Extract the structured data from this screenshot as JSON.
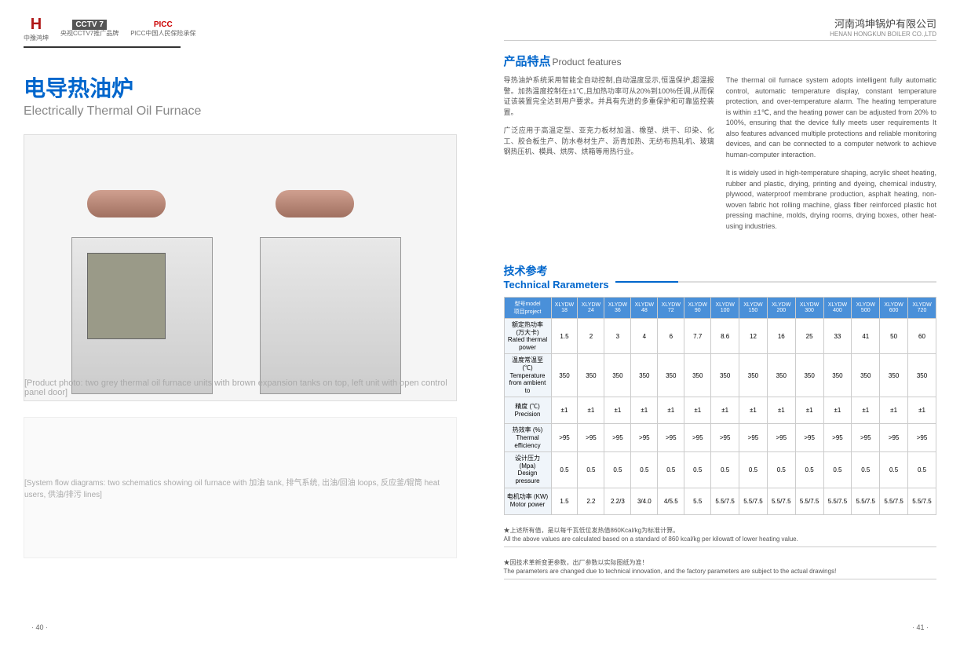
{
  "header": {
    "logo1_mark": "H",
    "logo1_text": "中豫鸿坤",
    "logo2_brand": "CCTV 7",
    "logo2_text": "央视CCTV7推广品牌",
    "logo3_brand": "PICC",
    "logo3_text": "PICC中国人民保险承保",
    "company_cn": "河南鸿坤锅炉有限公司",
    "company_en": "HENAN HONGKUN BOILER CO.,LTD"
  },
  "title": {
    "cn": "电导热油炉",
    "en": "Electrically Thermal Oil Furnace"
  },
  "product_image_alt": "[Product photo: two grey thermal oil furnace units with brown expansion tanks on top, left unit with open control panel door]",
  "diagram_alt": "[System flow diagrams: two schematics showing oil furnace with 加油 tank, 排气系统, 出油/回油 loops, 反应釜/辊筒 heat users, 供油/排污 lines]",
  "features": {
    "title_cn": "产品特点",
    "title_en": "Product features",
    "cn_p1": "导热油炉系统采用智能全自动控制,自动温度显示,恒温保护,超温报警。加热温度控制在±1℃,且加热功率可从20%到100%任调,从而保证该装置完全达到用户要求。并具有先进的多重保护和可靠监控装置。",
    "cn_p2": "广泛应用于高温定型、亚克力板材加温、橡塑、烘干、印染、化工、胶合板生产、防水卷材生产、沥青加热、无纺布热轧机、玻璃钢热压机、模具、烘房、烘箱等用热行业。",
    "en_p1": "The thermal oil furnace system adopts intelligent fully automatic control, automatic temperature display, constant temperature protection, and over-temperature alarm. The heating temperature is within ±1℃, and the heating power can be adjusted from 20% to 100%, ensuring that the device fully meets user requirements It also features advanced multiple protections and reliable monitoring devices, and can be connected to a computer network to achieve human-computer interaction.",
    "en_p2": "It is widely used in high-temperature shaping, acrylic sheet heating, rubber and plastic, drying, printing and dyeing, chemical industry, plywood, waterproof membrane production, asphalt heating, non-woven fabric hot rolling machine, glass fiber reinforced plastic hot pressing machine, molds, drying rooms, drying boxes, other heat-using industries."
  },
  "tech": {
    "title_cn": "技术参考",
    "title_en": "Technical Rarameters",
    "row_header_label": "项目project",
    "model_label": "型号model",
    "columns": [
      "XLYDW 18",
      "XLYDW 24",
      "XLYDW 36",
      "XLYDW 48",
      "XLYDW 72",
      "XLYDW 90",
      "XLYDW 100",
      "XLYDW 150",
      "XLYDW 200",
      "XLYDW 300",
      "XLYDW 400",
      "XLYDW 500",
      "XLYDW 600",
      "XLYDW 720"
    ],
    "rows": [
      {
        "label": "额定热功率\n(万大卡)\nRated thermal power",
        "cells": [
          "1.5",
          "2",
          "3",
          "4",
          "6",
          "7.7",
          "8.6",
          "12",
          "16",
          "25",
          "33",
          "41",
          "50",
          "60"
        ]
      },
      {
        "label": "温度常温至 (℃)\nTemperature from ambient to",
        "cells": [
          "350",
          "350",
          "350",
          "350",
          "350",
          "350",
          "350",
          "350",
          "350",
          "350",
          "350",
          "350",
          "350",
          "350"
        ]
      },
      {
        "label": "精度 (℃)\nPrecision",
        "cells": [
          "±1",
          "±1",
          "±1",
          "±1",
          "±1",
          "±1",
          "±1",
          "±1",
          "±1",
          "±1",
          "±1",
          "±1",
          "±1",
          "±1"
        ]
      },
      {
        "label": "热效率 (%)\nThermal efficiency",
        "cells": [
          ">95",
          ">95",
          ">95",
          ">95",
          ">95",
          ">95",
          ">95",
          ">95",
          ">95",
          ">95",
          ">95",
          ">95",
          ">95",
          ">95"
        ]
      },
      {
        "label": "设计压力 (Mpa)\nDesign pressure",
        "cells": [
          "0.5",
          "0.5",
          "0.5",
          "0.5",
          "0.5",
          "0.5",
          "0.5",
          "0.5",
          "0.5",
          "0.5",
          "0.5",
          "0.5",
          "0.5",
          "0.5"
        ]
      },
      {
        "label": "电机功率 (KW)\nMotor power",
        "cells": [
          "1.5",
          "2.2",
          "2.2/3",
          "3/4.0",
          "4/5.5",
          "5.5",
          "5.5/7.5",
          "5.5/7.5",
          "5.5/7.5",
          "5.5/7.5",
          "5.5/7.5",
          "5.5/7.5",
          "5.5/7.5",
          "5.5/7.5"
        ]
      }
    ],
    "footnote1_cn": "★上述所有值，是以每千瓦低位发热值860Kcal/kg为标准计算。",
    "footnote1_en": "All the above values are calculated based on a standard of 860 kcal/kg per kilowatt of lower heating value.",
    "footnote2_cn": "★因技术革新变更参数，出厂参数以实际图纸为准！",
    "footnote2_en": "The parameters are changed due to technical innovation, and the factory parameters are subject to the actual drawings!"
  },
  "page_left": "· 40 ·",
  "page_right": "· 41 ·",
  "colors": {
    "brand_blue": "#0066cc",
    "table_header": "#4a90d9",
    "table_row_label_bg": "#f0f5fa"
  }
}
